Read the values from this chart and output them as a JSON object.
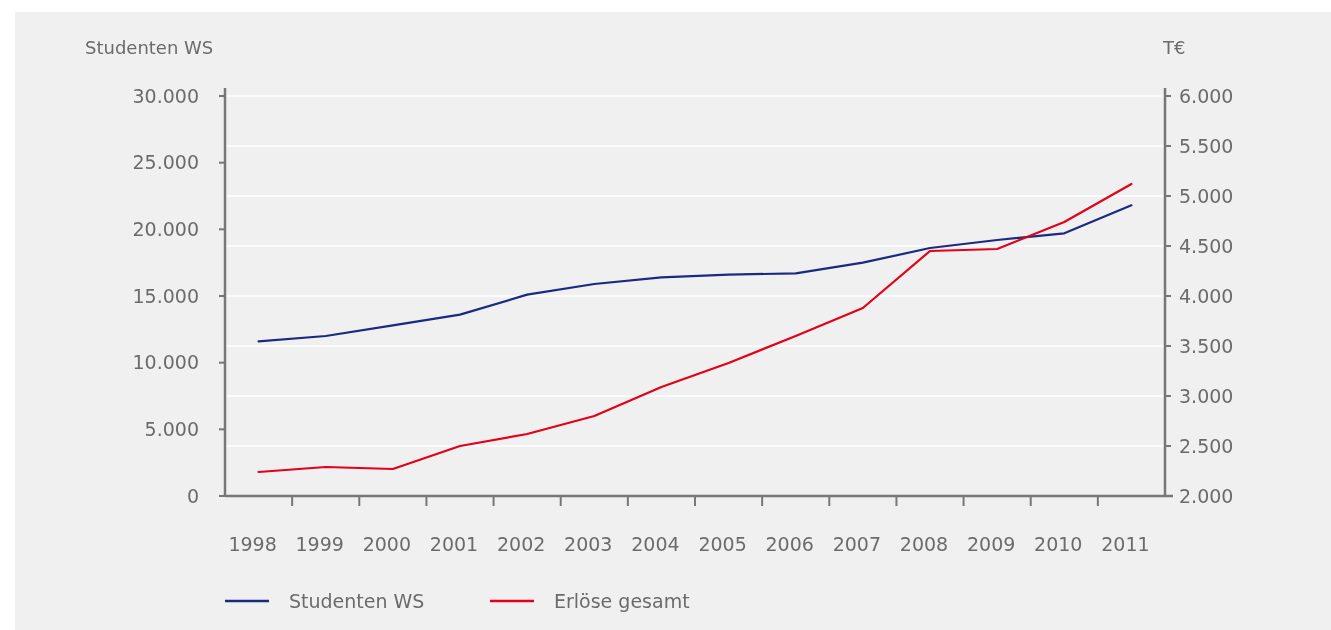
{
  "chart_data": {
    "type": "line",
    "ylabel": "Studenten WS",
    "y2label": "T€",
    "categories": [
      "1998",
      "1999",
      "2000",
      "2001",
      "2002",
      "2003",
      "2004",
      "2005",
      "2006",
      "2007",
      "2008",
      "2009",
      "2010",
      "2011"
    ],
    "series": [
      {
        "name": "Studenten WS",
        "color": "#1a2a80",
        "values": [
          11600,
          12000,
          12800,
          13600,
          15100,
          15900,
          16400,
          16600,
          16700,
          17500,
          18600,
          19200,
          19700,
          21800
        ]
      },
      {
        "name": "Erlöse gesamt",
        "color": "#e2001a",
        "axis": "y2",
        "values": [
          2240,
          2290,
          2270,
          2500,
          2620,
          2800,
          3090,
          3330,
          3600,
          3880,
          4450,
          4470,
          4740,
          5120
        ]
      }
    ],
    "ylim": [
      0,
      30000
    ],
    "yticks": [
      {
        "value": 0,
        "label": "0"
      },
      {
        "value": 5000,
        "label": "5.000"
      },
      {
        "value": 10000,
        "label": "10.000"
      },
      {
        "value": 15000,
        "label": "15.000"
      },
      {
        "value": 20000,
        "label": "20.000"
      },
      {
        "value": 25000,
        "label": "25.000"
      },
      {
        "value": 30000,
        "label": "30.000"
      }
    ],
    "y2lim": [
      2000,
      6000
    ],
    "y2ticks": [
      {
        "value": 2000,
        "label": "2.000"
      },
      {
        "value": 2500,
        "label": "2.500"
      },
      {
        "value": 3000,
        "label": "3.000"
      },
      {
        "value": 3500,
        "label": "3.500"
      },
      {
        "value": 4000,
        "label": "4.000"
      },
      {
        "value": 4500,
        "label": "4.500"
      },
      {
        "value": 5000,
        "label": "5.000"
      },
      {
        "value": 5500,
        "label": "5.500"
      },
      {
        "value": 6000,
        "label": "6.000"
      }
    ],
    "grid": "y2",
    "legend": "bottom",
    "marker": "none",
    "line_style": "solid"
  }
}
